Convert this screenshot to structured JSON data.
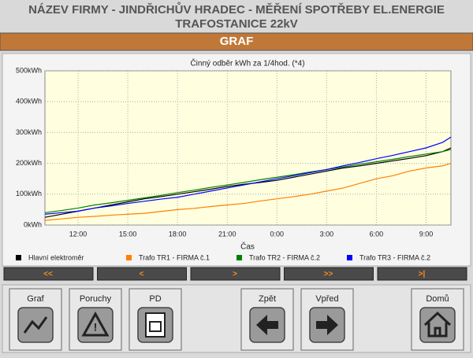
{
  "header": {
    "title_lines": [
      "NÁZEV FIRMY - JINDŘICHŮV HRADEC - MĚŘENÍ SPOTŘEBY EL.ENERGIE",
      "TRAFOSTANICE 22kV"
    ],
    "section": "GRAF"
  },
  "chart_data": {
    "type": "line",
    "title": "Činný odběr kWh za 1/4hod. (*4)",
    "x_label": "Čas",
    "x": [
      10,
      11,
      12,
      13,
      14,
      15,
      16,
      17,
      18,
      19,
      20,
      21,
      22,
      23,
      24,
      25,
      26,
      27,
      28,
      29,
      30,
      31,
      32,
      33,
      34,
      34.5
    ],
    "xlim": [
      10,
      34.5
    ],
    "xticks": [
      {
        "value": 12,
        "label": "12:00"
      },
      {
        "value": 15,
        "label": "15:00"
      },
      {
        "value": 18,
        "label": "18:00"
      },
      {
        "value": 21,
        "label": "21:00"
      },
      {
        "value": 24,
        "label": "0:00"
      },
      {
        "value": 27,
        "label": "3:00"
      },
      {
        "value": 30,
        "label": "6:00"
      },
      {
        "value": 33,
        "label": "9:00"
      }
    ],
    "ylim": [
      0,
      500
    ],
    "yticks": [
      {
        "value": 0,
        "label": "0kWh"
      },
      {
        "value": 100,
        "label": "100kWh"
      },
      {
        "value": 200,
        "label": "200kWh"
      },
      {
        "value": 300,
        "label": "300kWh"
      },
      {
        "value": 400,
        "label": "400kWh"
      },
      {
        "value": 500,
        "label": "500kWh"
      }
    ],
    "grid": true,
    "series": [
      {
        "name": "Hlavní elektroměr",
        "color": "#000000",
        "values": [
          25,
          35,
          45,
          55,
          65,
          75,
          85,
          92,
          100,
          108,
          116,
          125,
          132,
          138,
          145,
          155,
          165,
          175,
          185,
          192,
          200,
          208,
          216,
          225,
          238,
          250
        ]
      },
      {
        "name": "Trafo TR1 - FIRMA č.1",
        "color": "#ff8000",
        "values": [
          15,
          20,
          25,
          28,
          32,
          35,
          38,
          44,
          50,
          54,
          60,
          65,
          70,
          78,
          85,
          92,
          100,
          110,
          120,
          135,
          150,
          160,
          175,
          185,
          192,
          200
        ]
      },
      {
        "name": "Trafo TR2 - FIRMA č.2",
        "color": "#008000",
        "values": [
          40,
          47,
          55,
          65,
          72,
          80,
          88,
          96,
          105,
          113,
          122,
          130,
          138,
          147,
          155,
          163,
          172,
          180,
          188,
          197,
          205,
          213,
          222,
          230,
          238,
          245
        ]
      },
      {
        "name": "Trafo TR3 - FIRMA č.2",
        "color": "#0000ff",
        "values": [
          35,
          40,
          45,
          55,
          62,
          70,
          77,
          84,
          90,
          100,
          110,
          120,
          130,
          140,
          150,
          160,
          170,
          180,
          192,
          203,
          215,
          226,
          238,
          250,
          268,
          285
        ]
      }
    ]
  },
  "nav_buttons": [
    "<<",
    "<",
    ">",
    ">>",
    ">|"
  ],
  "buttons": [
    "Graf",
    "Poruchy",
    "PD",
    "Zpět",
    "Vpřed",
    "Domů"
  ]
}
